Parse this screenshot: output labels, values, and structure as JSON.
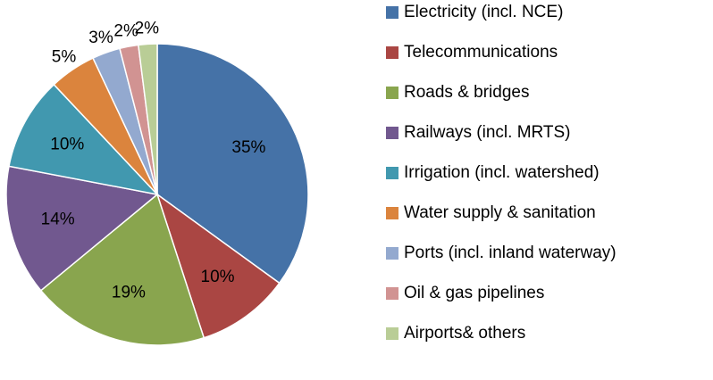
{
  "chart_data": {
    "type": "pie",
    "categories": [
      "Electricity (incl. NCE)",
      "Telecommunications",
      "Roads & bridges",
      "Railways (incl. MRTS)",
      "Irrigation (incl. watershed)",
      "Water supply & sanitation",
      "Ports (incl. inland waterway)",
      "Oil & gas pipelines",
      "Airports& others"
    ],
    "values": [
      35,
      10,
      19,
      14,
      10,
      5,
      3,
      2,
      2
    ],
    "value_labels": [
      "35%",
      "10%",
      "19%",
      "14%",
      "10%",
      "5%",
      "3%",
      "2%",
      "2%"
    ],
    "colors": [
      "#4572a7",
      "#aa4643",
      "#89a54e",
      "#71588f",
      "#4198af",
      "#db843d",
      "#93a9cf",
      "#d19392",
      "#b9cd96"
    ],
    "legend": "right"
  }
}
